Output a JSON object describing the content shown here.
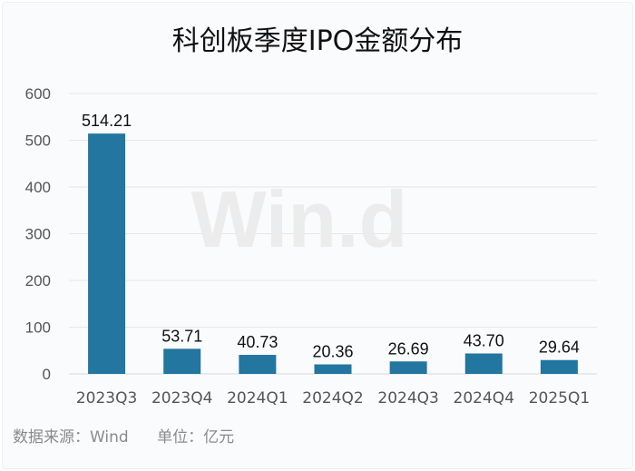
{
  "chart_data": {
    "type": "bar",
    "title": "科创板季度IPO金额分布",
    "categories": [
      "2023Q3",
      "2023Q4",
      "2024Q1",
      "2024Q2",
      "2024Q3",
      "2024Q4",
      "2025Q1"
    ],
    "values": [
      514.21,
      53.71,
      40.73,
      20.36,
      26.69,
      43.7,
      29.64
    ],
    "data_labels": [
      "514.21",
      "53.71",
      "40.73",
      "20.36",
      "26.69",
      "43.70",
      "29.64"
    ],
    "xlabel": "",
    "ylabel": "",
    "ylim": [
      0,
      600
    ],
    "yticks": [
      0,
      100,
      200,
      300,
      400,
      500,
      600
    ],
    "grid": true,
    "bar_color": "#22769f"
  },
  "footer": {
    "source": "数据来源：Wind",
    "unit": "单位：亿元"
  },
  "watermark": "Wind"
}
